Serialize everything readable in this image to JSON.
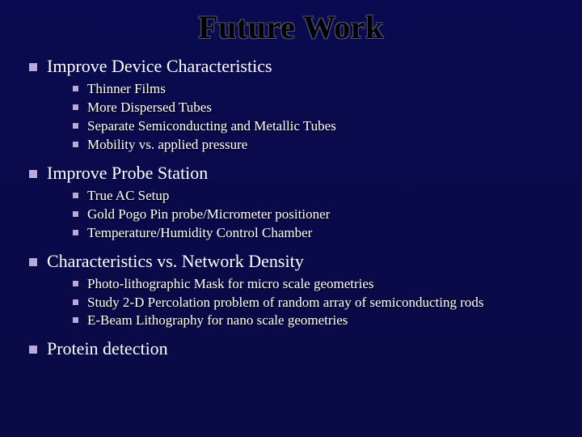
{
  "title": "Future Work",
  "colors": {
    "background": "#0a0a4a",
    "title_fill": "#000000",
    "title_outline": "#555577",
    "body_text": "#ffffff",
    "bullet": "#b8a8e0"
  },
  "typography": {
    "title_fontsize": 40,
    "level1_fontsize": 22,
    "level2_fontsize": 17,
    "font_family": "Georgia / Times New Roman serif"
  },
  "bullets": [
    {
      "text": "Improve Device Characteristics",
      "sub": [
        "Thinner Films",
        "More Dispersed Tubes",
        "Separate Semiconducting and Metallic Tubes",
        "Mobility vs. applied pressure"
      ]
    },
    {
      "text": "Improve Probe Station",
      "sub": [
        "True AC Setup",
        "Gold Pogo Pin probe/Micrometer positioner",
        "Temperature/Humidity Control Chamber"
      ]
    },
    {
      "text": "Characteristics vs. Network Density",
      "sub": [
        "Photo-lithographic Mask for micro scale geometries",
        "Study 2-D Percolation problem of random array of  semiconducting rods",
        "E-Beam Lithography for nano scale geometries"
      ]
    },
    {
      "text": "Protein detection",
      "sub": []
    }
  ]
}
